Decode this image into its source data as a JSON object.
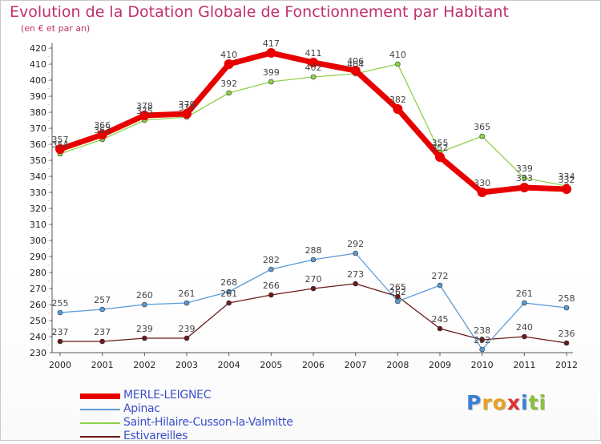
{
  "chart_data": {
    "type": "line",
    "title": "Evolution de la Dotation Globale de Fonctionnement par Habitant",
    "subtitle": "(en € et par an)",
    "xlabel": "",
    "ylabel": "",
    "x": [
      "2000",
      "2001",
      "2002",
      "2003",
      "2004",
      "2005",
      "2006",
      "2007",
      "2008",
      "2009",
      "2010",
      "2011",
      "2012"
    ],
    "ylim": [
      230,
      420
    ],
    "yticks": [
      230,
      240,
      250,
      260,
      270,
      280,
      290,
      300,
      310,
      320,
      330,
      340,
      350,
      360,
      370,
      380,
      390,
      400,
      410,
      420
    ],
    "grid": false,
    "legend_position": "bottom-left",
    "series": [
      {
        "name": "Estivareilles",
        "color": "#6b1a1a",
        "values": [
          237,
          237,
          239,
          239,
          261,
          266,
          270,
          273,
          265,
          245,
          238,
          240,
          236
        ]
      },
      {
        "name": "Apinac",
        "color": "#5a9bd5",
        "values": [
          255,
          257,
          260,
          261,
          268,
          282,
          288,
          292,
          262,
          272,
          232,
          261,
          258
        ]
      },
      {
        "name": "Saint-Hilaire-Cusson-la-Valmitte",
        "color": "#8ed14a",
        "values": [
          354,
          363,
          375,
          377,
          392,
          399,
          402,
          404,
          410,
          355,
          365,
          339,
          334
        ]
      },
      {
        "name": "MERLE-LEIGNEC",
        "color": "#e80000",
        "values": [
          357,
          366,
          378,
          379,
          410,
          417,
          411,
          406,
          382,
          352,
          330,
          333,
          332
        ]
      }
    ],
    "legend_order": [
      "MERLE-LEIGNEC",
      "Apinac",
      "Saint-Hilaire-Cusson-la-Valmitte",
      "Estivareilles"
    ]
  },
  "logo": {
    "letters": [
      "P",
      "r",
      "o",
      "x",
      "i",
      "t",
      "i"
    ],
    "colors": [
      "#3a7fd5",
      "#e8a020",
      "#e8a020",
      "#e03030",
      "#3a7fd5",
      "#8ac040",
      "#8ac040"
    ]
  }
}
